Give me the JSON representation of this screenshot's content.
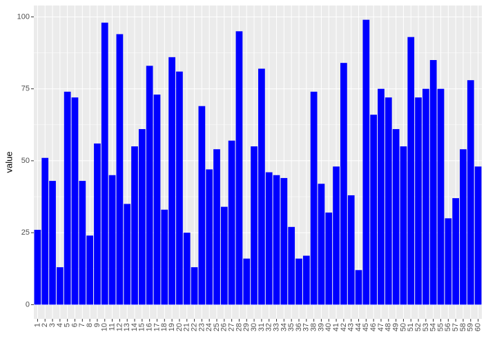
{
  "chart_data": {
    "type": "bar",
    "y_label": "value",
    "categories": [
      "1",
      "2",
      "3",
      "4",
      "5",
      "6",
      "7",
      "8",
      "9",
      "10",
      "11",
      "12",
      "13",
      "14",
      "15",
      "16",
      "17",
      "18",
      "19",
      "20",
      "21",
      "22",
      "23",
      "24",
      "25",
      "26",
      "27",
      "28",
      "29",
      "30",
      "31",
      "32",
      "33",
      "34",
      "35",
      "36",
      "37",
      "38",
      "39",
      "40",
      "41",
      "42",
      "43",
      "44",
      "45",
      "46",
      "47",
      "48",
      "49",
      "50",
      "51",
      "52",
      "53",
      "54",
      "55",
      "56",
      "57",
      "58",
      "59",
      "60"
    ],
    "values": [
      26,
      51,
      43,
      13,
      74,
      72,
      43,
      24,
      56,
      98,
      45,
      94,
      35,
      55,
      61,
      83,
      73,
      33,
      86,
      81,
      25,
      13,
      69,
      47,
      54,
      34,
      57,
      95,
      16,
      55,
      82,
      46,
      45,
      44,
      27,
      16,
      17,
      74,
      42,
      32,
      48,
      84,
      38,
      12,
      99,
      66,
      75,
      72,
      61,
      55,
      93,
      72,
      75,
      85,
      75,
      30,
      37,
      54,
      78,
      48
    ],
    "color": "#0000ff",
    "ylim": [
      -4.95,
      103.95
    ],
    "yticks": [
      0,
      25,
      50,
      75,
      100
    ],
    "grid": true
  }
}
